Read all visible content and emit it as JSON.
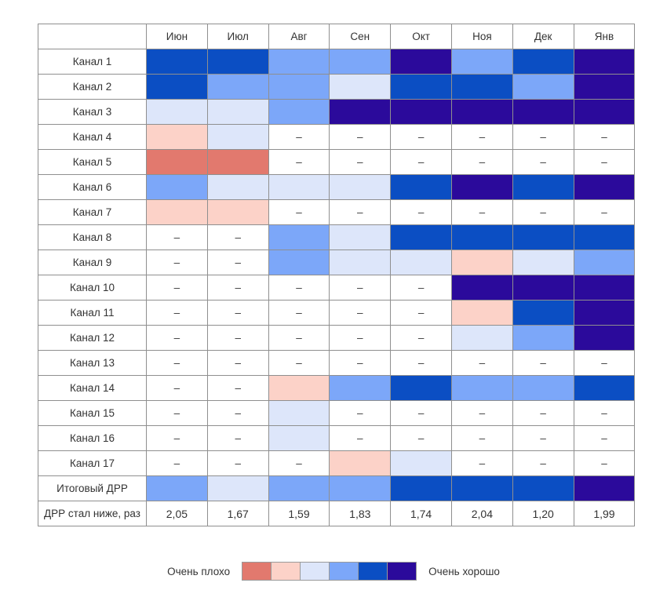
{
  "chart_data": {
    "type": "heatmap",
    "columns": [
      "Июн",
      "Июл",
      "Авг",
      "Сен",
      "Окт",
      "Ноя",
      "Дек",
      "Янв"
    ],
    "rows": [
      {
        "label": "Канал 1",
        "levels": [
          5,
          5,
          4,
          4,
          6,
          4,
          5,
          6
        ]
      },
      {
        "label": "Канал 2",
        "levels": [
          5,
          4,
          4,
          3,
          5,
          5,
          4,
          6
        ]
      },
      {
        "label": "Канал 3",
        "levels": [
          3,
          3,
          4,
          6,
          6,
          6,
          6,
          6
        ]
      },
      {
        "label": "Канал 4",
        "levels": [
          2,
          3,
          null,
          null,
          null,
          null,
          null,
          null
        ]
      },
      {
        "label": "Канал 5",
        "levels": [
          1,
          1,
          null,
          null,
          null,
          null,
          null,
          null
        ]
      },
      {
        "label": "Канал 6",
        "levels": [
          4,
          3,
          3,
          3,
          5,
          6,
          5,
          6
        ]
      },
      {
        "label": "Канал 7",
        "levels": [
          2,
          2,
          null,
          null,
          null,
          null,
          null,
          null
        ]
      },
      {
        "label": "Канал 8",
        "levels": [
          null,
          null,
          4,
          3,
          5,
          5,
          5,
          5
        ]
      },
      {
        "label": "Канал 9",
        "levels": [
          null,
          null,
          4,
          3,
          3,
          2,
          3,
          4
        ]
      },
      {
        "label": "Канал 10",
        "levels": [
          null,
          null,
          null,
          null,
          null,
          6,
          6,
          6
        ]
      },
      {
        "label": "Канал 11",
        "levels": [
          null,
          null,
          null,
          null,
          null,
          2,
          5,
          6
        ]
      },
      {
        "label": "Канал 12",
        "levels": [
          null,
          null,
          null,
          null,
          null,
          3,
          4,
          6
        ]
      },
      {
        "label": "Канал 13",
        "levels": [
          null,
          null,
          null,
          null,
          null,
          null,
          null,
          null
        ]
      },
      {
        "label": "Канал 14",
        "levels": [
          null,
          null,
          2,
          4,
          5,
          4,
          4,
          5
        ]
      },
      {
        "label": "Канал 15",
        "levels": [
          null,
          null,
          3,
          null,
          null,
          null,
          null,
          null
        ]
      },
      {
        "label": "Канал 16",
        "levels": [
          null,
          null,
          3,
          null,
          null,
          null,
          null,
          null
        ]
      },
      {
        "label": "Канал 17",
        "levels": [
          null,
          null,
          null,
          2,
          3,
          null,
          null,
          null
        ]
      },
      {
        "label": "Итоговый ДРР",
        "levels": [
          4,
          3,
          4,
          4,
          5,
          5,
          5,
          6
        ]
      }
    ],
    "footer_row": {
      "label": "ДРР стал ниже, раз",
      "values": [
        "2,05",
        "1,67",
        "1,59",
        "1,83",
        "1,74",
        "2,04",
        "1,20",
        "1,99"
      ]
    },
    "empty_marker": "–",
    "color_scale": {
      "levels": [
        "#E2796E",
        "#FCD2C8",
        "#DDE6FA",
        "#7CA7F9",
        "#0B4EC3",
        "#2B0A9B"
      ],
      "label_low": "Очень плохо",
      "label_high": "Очень хорошо"
    }
  }
}
